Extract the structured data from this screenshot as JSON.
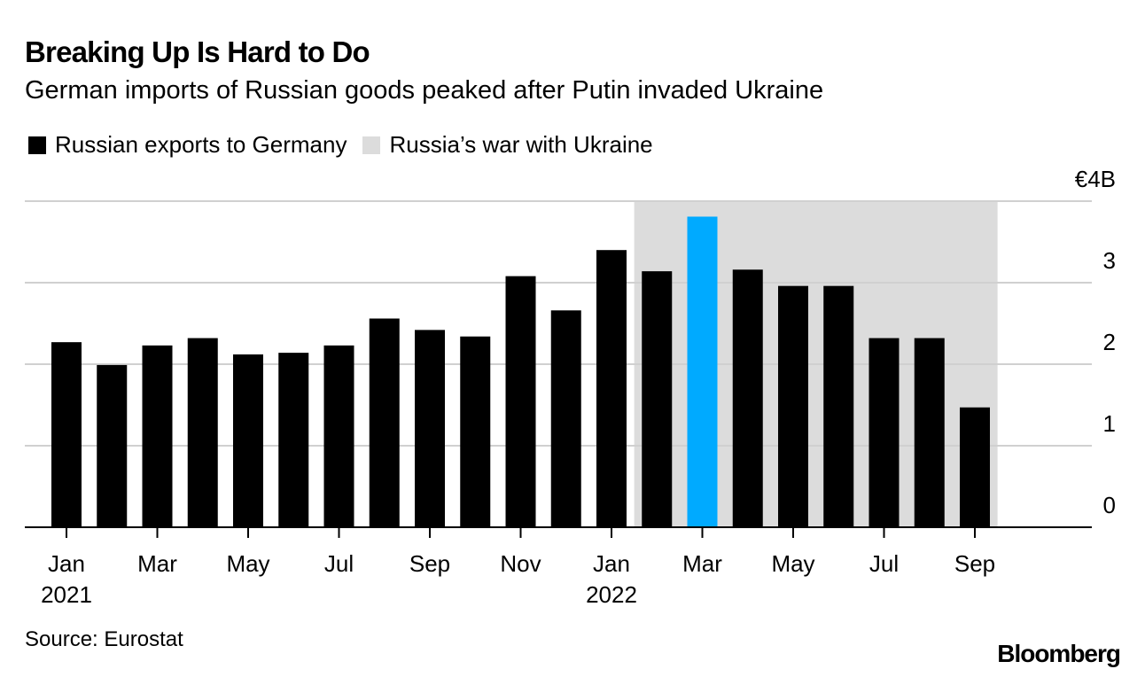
{
  "title": "Breaking Up Is Hard to Do",
  "subtitle": "German imports of Russian goods peaked after Putin invaded Ukraine",
  "legend": {
    "series_label": "Russian exports to Germany",
    "shade_label": "Russia’s war with Ukraine"
  },
  "source": "Source: Eurostat",
  "brand": "Bloomberg",
  "colors": {
    "bar": "#000000",
    "highlight": "#00aaff",
    "shade": "#dcdcdc",
    "grid": "#d0d0d0"
  },
  "chart_data": {
    "type": "bar",
    "title": "Breaking Up Is Hard to Do",
    "subtitle": "German imports of Russian goods peaked after Putin invaded Ukraine",
    "xlabel": "",
    "ylabel": "",
    "unit": "€ billions",
    "ylim": [
      0,
      4
    ],
    "yticks": [
      0,
      1,
      2,
      3,
      4
    ],
    "ytick_labels": [
      "0",
      "1",
      "2",
      "3",
      "€4B"
    ],
    "grid": true,
    "legend_position": "top-left",
    "categories": [
      "Jan 2021",
      "Feb 2021",
      "Mar 2021",
      "Apr 2021",
      "May 2021",
      "Jun 2021",
      "Jul 2021",
      "Aug 2021",
      "Sep 2021",
      "Oct 2021",
      "Nov 2021",
      "Dec 2021",
      "Jan 2022",
      "Feb 2022",
      "Mar 2022",
      "Apr 2022",
      "May 2022",
      "Jun 2022",
      "Jul 2022",
      "Aug 2022",
      "Sep 2022"
    ],
    "series": [
      {
        "name": "Russian exports to Germany",
        "values": [
          2.27,
          1.99,
          2.23,
          2.32,
          2.12,
          2.14,
          2.23,
          2.56,
          2.42,
          2.34,
          3.08,
          2.66,
          3.4,
          3.14,
          3.81,
          3.16,
          2.96,
          2.96,
          2.32,
          2.32,
          1.47
        ]
      }
    ],
    "highlight_index": 14,
    "shaded_range": {
      "label": "Russia’s war with Ukraine",
      "start": "Feb 2022",
      "end": "Sep 2022"
    },
    "xtick_labels": [
      {
        "index": 0,
        "label": "Jan",
        "year": "2021"
      },
      {
        "index": 2,
        "label": "Mar",
        "year": ""
      },
      {
        "index": 4,
        "label": "May",
        "year": ""
      },
      {
        "index": 6,
        "label": "Jul",
        "year": ""
      },
      {
        "index": 8,
        "label": "Sep",
        "year": ""
      },
      {
        "index": 10,
        "label": "Nov",
        "year": ""
      },
      {
        "index": 12,
        "label": "Jan",
        "year": "2022"
      },
      {
        "index": 14,
        "label": "Mar",
        "year": ""
      },
      {
        "index": 16,
        "label": "May",
        "year": ""
      },
      {
        "index": 18,
        "label": "Jul",
        "year": ""
      },
      {
        "index": 20,
        "label": "Sep",
        "year": ""
      }
    ]
  }
}
